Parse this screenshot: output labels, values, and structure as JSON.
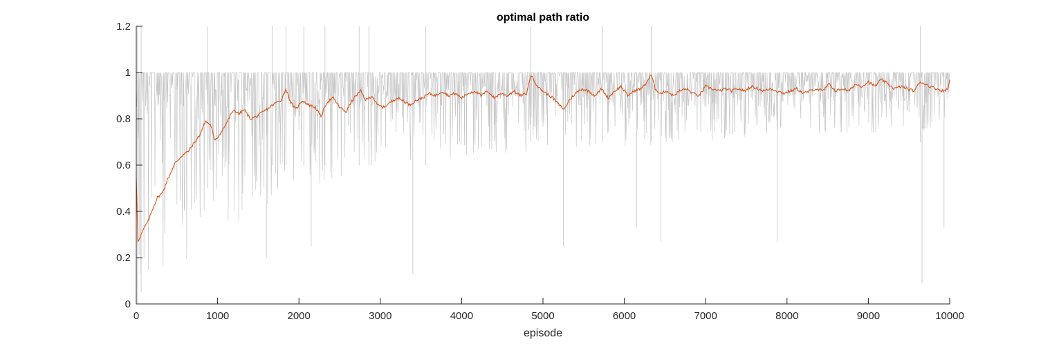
{
  "chart_data": {
    "type": "line",
    "title": "optimal path ratio",
    "xlabel": "episode",
    "ylabel": "",
    "xlim": [
      0,
      10000
    ],
    "ylim": [
      0,
      1.2
    ],
    "x_ticks": [
      0,
      1000,
      2000,
      3000,
      4000,
      5000,
      6000,
      7000,
      8000,
      9000,
      10000
    ],
    "y_ticks": [
      0,
      0.2,
      0.4,
      0.6,
      0.8,
      1,
      1.2
    ],
    "grid": false,
    "legend": "none",
    "series": [
      {
        "style": "raw per-episode ratio (dense thin line)",
        "color": "#c8c8c8",
        "band": {
          "x": [
            0,
            100,
            200,
            300,
            400,
            500,
            600,
            700,
            800,
            900,
            1000,
            1200,
            1500,
            2000,
            2500,
            3000,
            4000,
            5000,
            6000,
            7000,
            8000,
            9000,
            10000
          ],
          "lower": [
            0.02,
            0.03,
            0.05,
            0.08,
            0.1,
            0.13,
            0.16,
            0.2,
            0.22,
            0.25,
            0.3,
            0.33,
            0.4,
            0.48,
            0.55,
            0.6,
            0.63,
            0.66,
            0.68,
            0.7,
            0.72,
            0.74,
            0.75
          ],
          "upper": [
            1,
            1,
            1,
            1,
            1,
            1,
            1,
            1,
            1,
            1,
            1,
            1,
            1,
            1,
            1,
            1,
            1,
            1,
            1,
            1,
            1,
            1,
            1
          ]
        },
        "spikes": [
          {
            "x": 15,
            "y_min": 0.0,
            "y_max": 1.2
          },
          {
            "x": 60,
            "y_min": 0.05,
            "y_max": 1.2
          },
          {
            "x": 880,
            "y_min": 0.5,
            "y_max": 1.2
          },
          {
            "x": 1670,
            "y_min": 0.6,
            "y_max": 1.2
          },
          {
            "x": 1840,
            "y_min": 0.6,
            "y_max": 1.2
          },
          {
            "x": 2060,
            "y_min": 0.6,
            "y_max": 1.2
          },
          {
            "x": 2320,
            "y_min": 0.6,
            "y_max": 1.2
          },
          {
            "x": 2740,
            "y_min": 0.6,
            "y_max": 1.2
          },
          {
            "x": 2860,
            "y_min": 0.6,
            "y_max": 1.2
          },
          {
            "x": 3560,
            "y_min": 0.6,
            "y_max": 1.2
          },
          {
            "x": 4850,
            "y_min": 0.7,
            "y_max": 1.2
          },
          {
            "x": 5730,
            "y_min": 0.7,
            "y_max": 1.2
          },
          {
            "x": 6330,
            "y_min": 0.7,
            "y_max": 1.2
          },
          {
            "x": 9640,
            "y_min": 0.7,
            "y_max": 1.2
          },
          {
            "x": 3400,
            "y_min": 0.13,
            "y_max": 1.0
          },
          {
            "x": 9660,
            "y_min": 0.09,
            "y_max": 1.0
          },
          {
            "x": 5250,
            "y_min": 0.25,
            "y_max": 1.0
          },
          {
            "x": 6450,
            "y_min": 0.27,
            "y_max": 1.0
          },
          {
            "x": 7880,
            "y_min": 0.27,
            "y_max": 1.0
          },
          {
            "x": 1600,
            "y_min": 0.2,
            "y_max": 1.0
          },
          {
            "x": 2150,
            "y_min": 0.25,
            "y_max": 1.0
          },
          {
            "x": 6150,
            "y_min": 0.33,
            "y_max": 1.0
          },
          {
            "x": 9930,
            "y_min": 0.33,
            "y_max": 1.0
          }
        ]
      },
      {
        "style": "moving average",
        "color": "#d95319",
        "x": [
          0,
          20,
          60,
          100,
          150,
          200,
          260,
          320,
          400,
          480,
          560,
          640,
          720,
          780,
          850,
          920,
          960,
          1000,
          1060,
          1120,
          1200,
          1260,
          1330,
          1400,
          1480,
          1560,
          1640,
          1720,
          1780,
          1840,
          1900,
          1960,
          2040,
          2120,
          2200,
          2270,
          2340,
          2420,
          2500,
          2580,
          2640,
          2700,
          2760,
          2820,
          2900,
          2960,
          3040,
          3120,
          3200,
          3280,
          3360,
          3440,
          3520,
          3600,
          3680,
          3760,
          3840,
          3920,
          4000,
          4080,
          4160,
          4240,
          4320,
          4400,
          4480,
          4560,
          4640,
          4720,
          4800,
          4850,
          4900,
          4960,
          5040,
          5120,
          5200,
          5260,
          5320,
          5400,
          5480,
          5560,
          5640,
          5720,
          5800,
          5880,
          5960,
          6040,
          6120,
          6200,
          6260,
          6330,
          6380,
          6440,
          6520,
          6600,
          6680,
          6760,
          6840,
          6920,
          7000,
          7080,
          7160,
          7240,
          7320,
          7400,
          7480,
          7560,
          7640,
          7720,
          7800,
          7880,
          7960,
          8040,
          8120,
          8200,
          8280,
          8360,
          8440,
          8520,
          8600,
          8680,
          8760,
          8840,
          8920,
          9000,
          9080,
          9160,
          9240,
          9320,
          9400,
          9480,
          9560,
          9640,
          9700,
          9760,
          9840,
          9920,
          9980,
          10000
        ],
        "y": [
          0.55,
          0.27,
          0.3,
          0.33,
          0.36,
          0.41,
          0.46,
          0.48,
          0.55,
          0.61,
          0.64,
          0.66,
          0.7,
          0.73,
          0.79,
          0.77,
          0.71,
          0.72,
          0.75,
          0.79,
          0.84,
          0.82,
          0.84,
          0.8,
          0.81,
          0.83,
          0.85,
          0.87,
          0.88,
          0.93,
          0.87,
          0.84,
          0.88,
          0.86,
          0.85,
          0.81,
          0.87,
          0.89,
          0.85,
          0.83,
          0.87,
          0.9,
          0.92,
          0.88,
          0.9,
          0.86,
          0.85,
          0.87,
          0.89,
          0.88,
          0.86,
          0.88,
          0.89,
          0.91,
          0.9,
          0.92,
          0.9,
          0.91,
          0.89,
          0.91,
          0.92,
          0.9,
          0.92,
          0.89,
          0.91,
          0.9,
          0.92,
          0.9,
          0.91,
          0.99,
          0.96,
          0.93,
          0.91,
          0.89,
          0.86,
          0.84,
          0.88,
          0.91,
          0.93,
          0.92,
          0.9,
          0.93,
          0.89,
          0.92,
          0.94,
          0.9,
          0.92,
          0.93,
          0.95,
          0.99,
          0.93,
          0.91,
          0.92,
          0.9,
          0.92,
          0.93,
          0.91,
          0.9,
          0.94,
          0.93,
          0.92,
          0.93,
          0.92,
          0.93,
          0.92,
          0.94,
          0.93,
          0.92,
          0.93,
          0.92,
          0.91,
          0.92,
          0.93,
          0.91,
          0.92,
          0.93,
          0.92,
          0.95,
          0.92,
          0.93,
          0.92,
          0.95,
          0.94,
          0.96,
          0.94,
          0.97,
          0.95,
          0.93,
          0.94,
          0.93,
          0.92,
          0.96,
          0.95,
          0.94,
          0.93,
          0.92,
          0.93,
          0.97
        ]
      }
    ]
  }
}
